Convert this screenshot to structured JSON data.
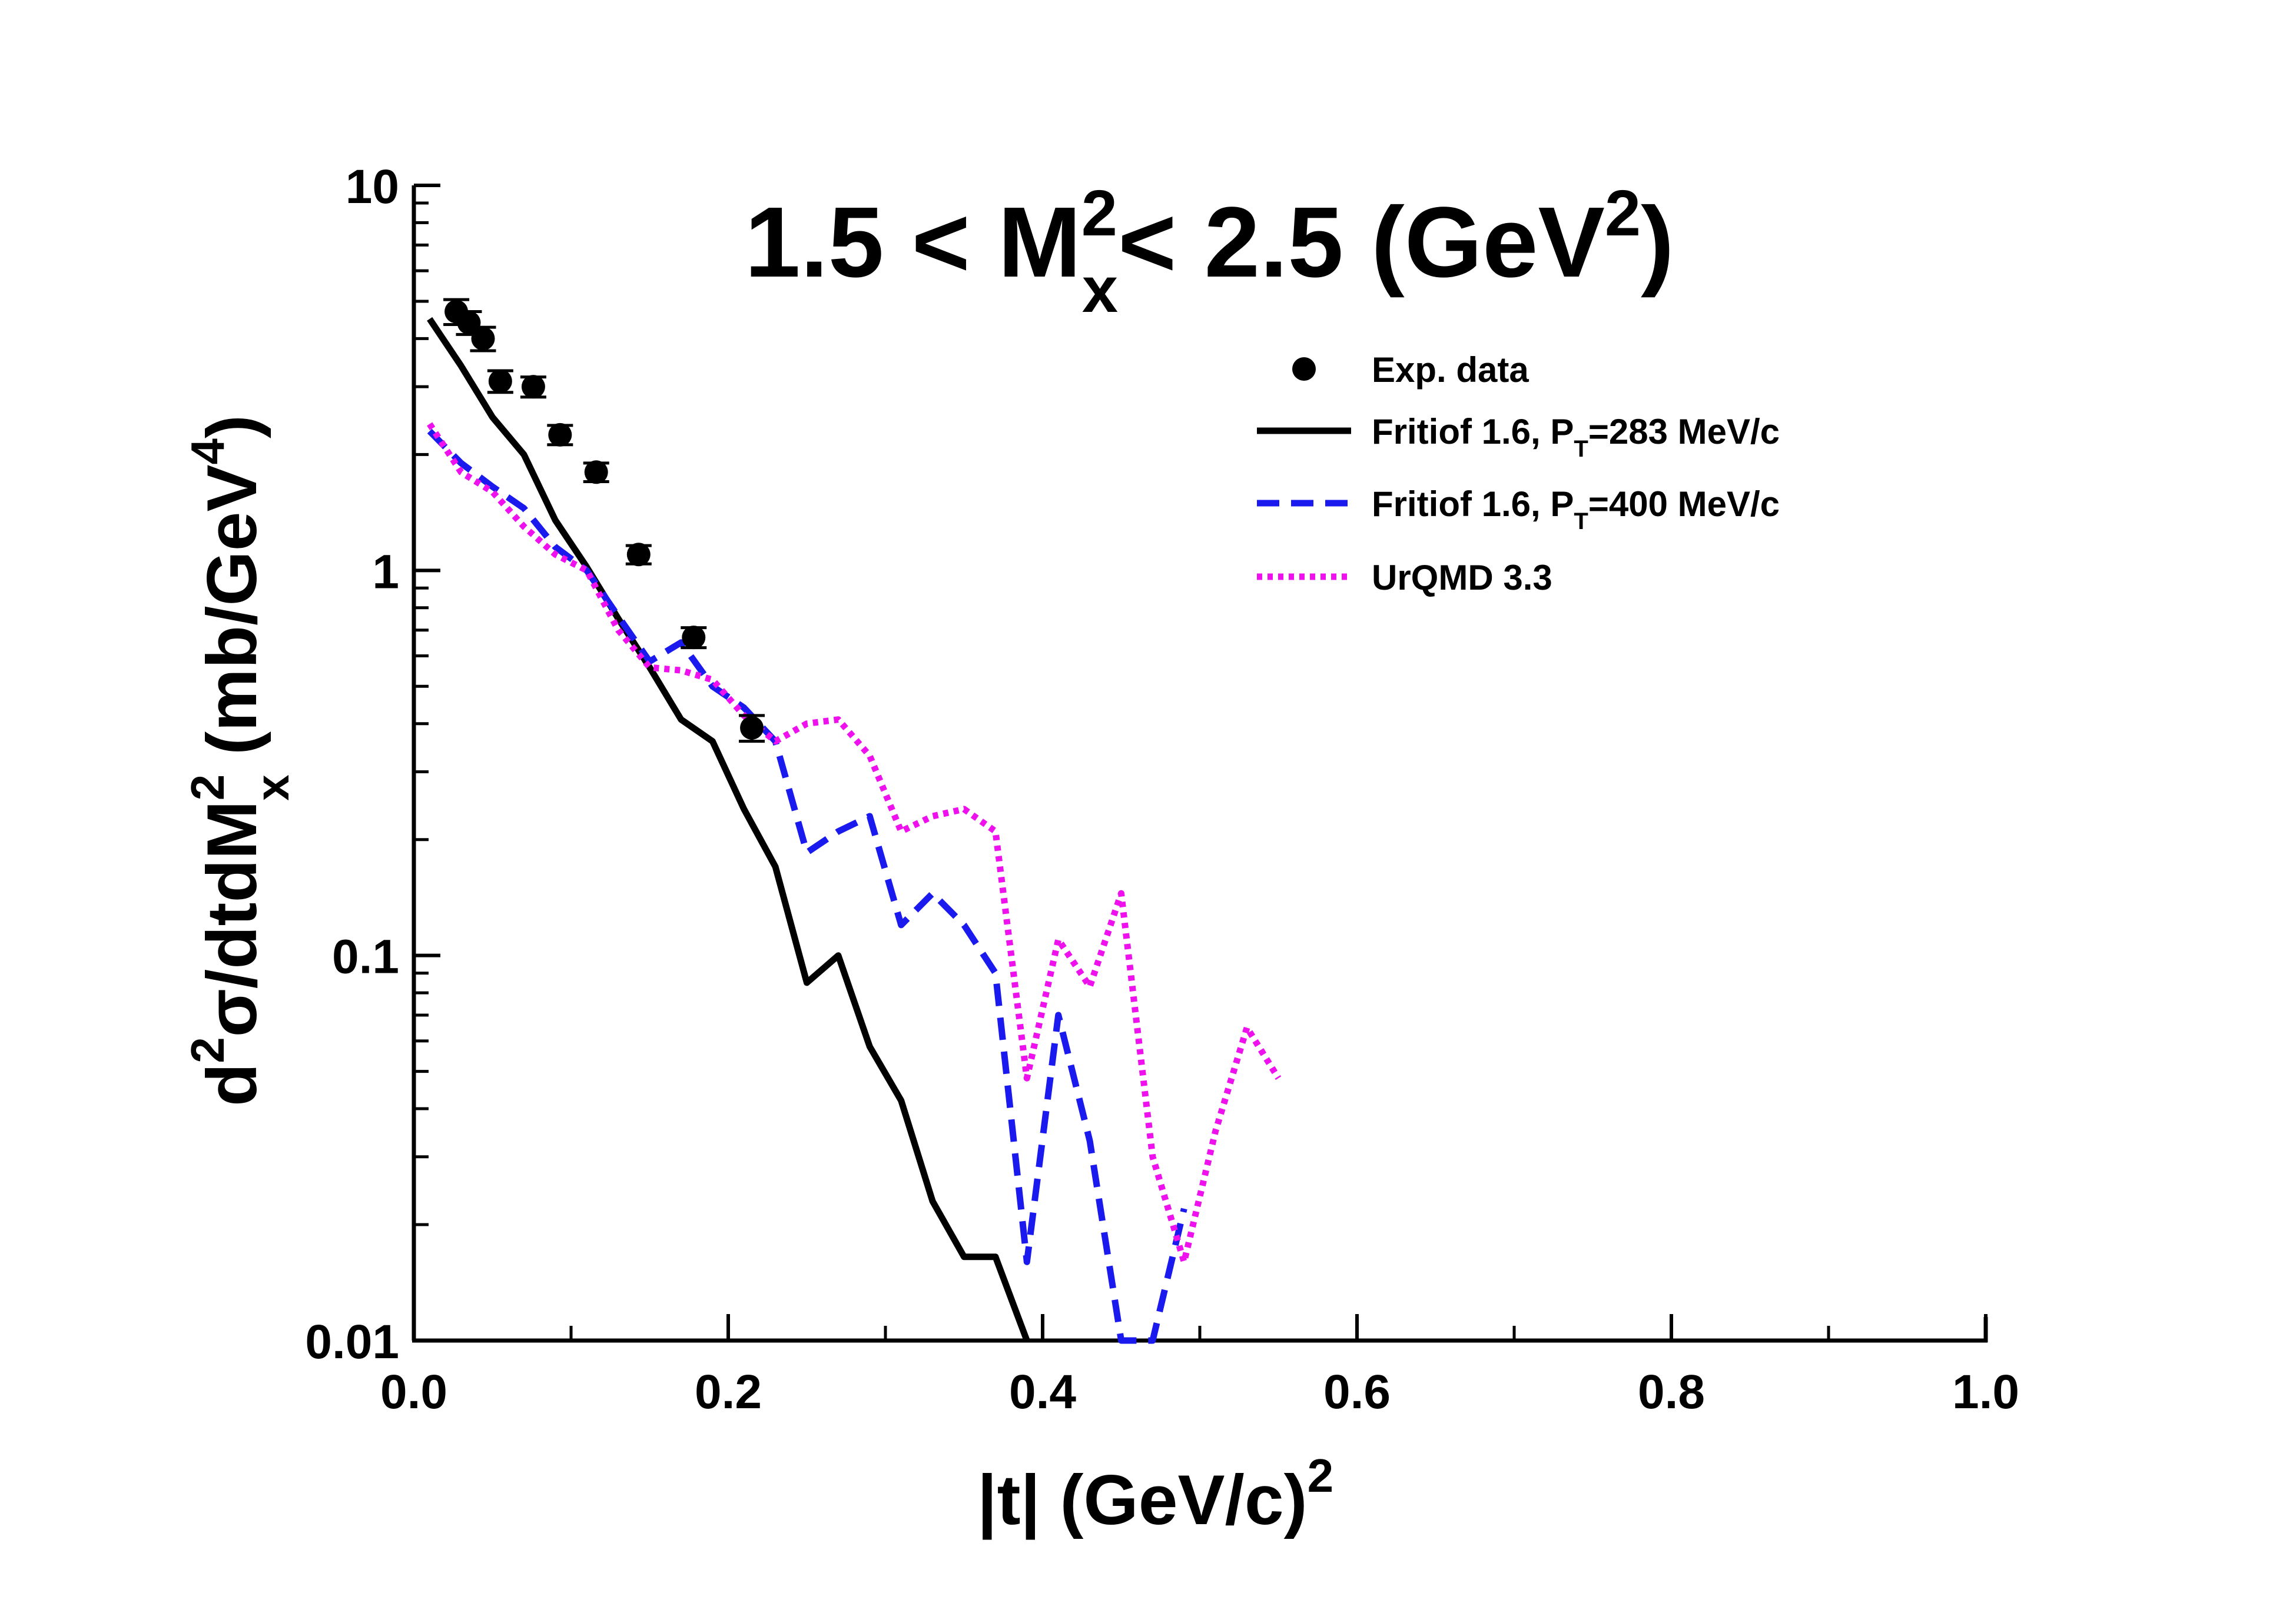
{
  "chart_data": {
    "type": "line",
    "title": {
      "pre": "1.5  < M",
      "sup": "2",
      "sub": "x",
      "post": "< 2.5 (GeV",
      "post_sup": "2",
      "close": ")"
    },
    "xlabel": {
      "main": "|t| (GeV/c)",
      "sup": "2"
    },
    "ylabel": {
      "a": "d",
      "a_sup": "2",
      "b": "σ/dtdM",
      "b_sup": "2",
      "b_sub": "x",
      "c": "  (mb/GeV",
      "c_sup": "4",
      "d": ")"
    },
    "xlim": [
      0.0,
      1.0
    ],
    "ylim": [
      0.01,
      10
    ],
    "yscale": "log",
    "x_ticks": [
      0.0,
      0.2,
      0.4,
      0.6,
      0.8,
      1.0
    ],
    "x_tick_labels": [
      "0.0",
      "0.2",
      "0.4",
      "0.6",
      "0.8",
      "1.0"
    ],
    "y_ticks": [
      0.01,
      0.1,
      1,
      10
    ],
    "y_tick_labels": [
      "0.01",
      "0.1",
      "1",
      "10"
    ],
    "legend_position": "upper-right",
    "series": [
      {
        "name": "Exp. data",
        "kind": "points",
        "color": "#000000",
        "x": [
          0.027,
          0.035,
          0.044,
          0.055,
          0.076,
          0.093,
          0.116,
          0.143,
          0.178,
          0.215
        ],
        "y": [
          4.7,
          4.4,
          4.0,
          3.1,
          3.0,
          2.25,
          1.8,
          1.1,
          0.67,
          0.39
        ],
        "yerr": [
          0.35,
          0.3,
          0.28,
          0.2,
          0.18,
          0.13,
          0.1,
          0.06,
          0.04,
          0.03
        ]
      },
      {
        "name": "Fritiof 1.6, P_T=283 MeV/c",
        "legend": {
          "pre": "Fritiof 1.6, P",
          "sub": "T",
          "post": "=283 MeV/c"
        },
        "kind": "line",
        "dash": "solid",
        "color": "#000000",
        "x": [
          0.01,
          0.03,
          0.05,
          0.07,
          0.09,
          0.11,
          0.13,
          0.15,
          0.17,
          0.19,
          0.21,
          0.23,
          0.25,
          0.27,
          0.29,
          0.31,
          0.33,
          0.35,
          0.37,
          0.39
        ],
        "y": [
          4.5,
          3.4,
          2.5,
          2.0,
          1.35,
          1.02,
          0.75,
          0.56,
          0.41,
          0.36,
          0.24,
          0.17,
          0.085,
          0.1,
          0.058,
          0.042,
          0.023,
          0.0165,
          0.0165,
          0.01
        ]
      },
      {
        "name": "Fritiof 1.6, P_T=400 MeV/c",
        "legend": {
          "pre": "Fritiof 1.6, P",
          "sub": "T",
          "post": "=400 MeV/c"
        },
        "kind": "line",
        "dash": "dashed",
        "color": "#1a1aee",
        "x": [
          0.01,
          0.03,
          0.05,
          0.07,
          0.09,
          0.11,
          0.13,
          0.15,
          0.17,
          0.19,
          0.21,
          0.23,
          0.25,
          0.27,
          0.29,
          0.31,
          0.33,
          0.35,
          0.37,
          0.39,
          0.41,
          0.43,
          0.45,
          0.47,
          0.49
        ],
        "y": [
          2.3,
          1.9,
          1.65,
          1.45,
          1.15,
          1.0,
          0.76,
          0.58,
          0.65,
          0.5,
          0.44,
          0.36,
          0.185,
          0.21,
          0.23,
          0.12,
          0.145,
          0.12,
          0.09,
          0.016,
          0.07,
          0.033,
          0.01,
          0.01,
          0.022
        ]
      },
      {
        "name": "UrQMD 3.3",
        "kind": "line",
        "dash": "dotted",
        "color": "#ee11ee",
        "x": [
          0.01,
          0.03,
          0.05,
          0.07,
          0.09,
          0.11,
          0.13,
          0.15,
          0.17,
          0.19,
          0.21,
          0.23,
          0.25,
          0.27,
          0.29,
          0.31,
          0.33,
          0.35,
          0.37,
          0.39,
          0.41,
          0.43,
          0.45,
          0.47,
          0.49,
          0.51,
          0.53,
          0.55
        ],
        "y": [
          2.4,
          1.8,
          1.6,
          1.3,
          1.1,
          1.0,
          0.7,
          0.56,
          0.55,
          0.52,
          0.42,
          0.36,
          0.4,
          0.41,
          0.33,
          0.21,
          0.23,
          0.24,
          0.21,
          0.048,
          0.11,
          0.083,
          0.145,
          0.03,
          0.016,
          0.035,
          0.065,
          0.048
        ]
      }
    ]
  }
}
